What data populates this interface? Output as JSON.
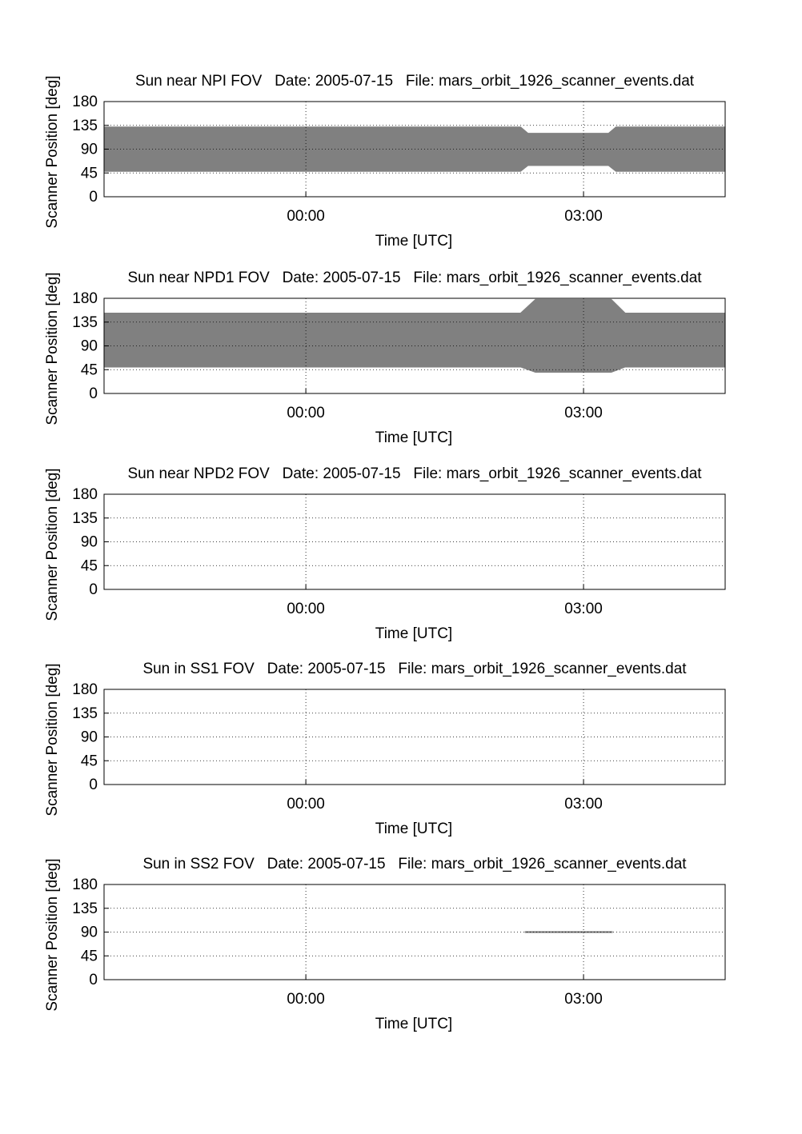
{
  "chart_data": [
    {
      "type": "band",
      "title": "Sun near NPI FOV   Date: 2005-07-15   File: mars_orbit_1926_scanner_events.dat",
      "xlabel": "Time [UTC]",
      "ylabel": "Scanner Position [deg]",
      "color": "#808080",
      "grid": true,
      "x": [
        -2.18,
        2.32,
        2.4,
        3.27,
        3.35,
        4.53
      ],
      "upper": [
        132,
        132,
        120,
        120,
        132,
        132
      ],
      "lower": [
        48,
        48,
        59,
        59,
        48,
        48
      ],
      "xlim": [
        -2.18,
        4.53
      ],
      "xticks": [
        {
          "value": 0,
          "label": "00:00"
        },
        {
          "value": 3,
          "label": "03:00"
        }
      ],
      "ylim": [
        0,
        180
      ],
      "yticks": [
        0,
        45,
        90,
        135,
        180
      ]
    },
    {
      "type": "band",
      "title": "Sun near NPD1 FOV   Date: 2005-07-15   File: mars_orbit_1926_scanner_events.dat",
      "xlabel": "Time [UTC]",
      "ylabel": "Scanner Position [deg]",
      "color": "#808080",
      "grid": true,
      "x": [
        -2.18,
        2.32,
        2.48,
        3.3,
        3.45,
        4.53
      ],
      "upper": [
        152,
        152,
        178,
        178,
        152,
        152
      ],
      "lower": [
        50,
        50,
        40,
        40,
        50,
        50
      ],
      "xlim": [
        -2.18,
        4.53
      ],
      "xticks": [
        {
          "value": 0,
          "label": "00:00"
        },
        {
          "value": 3,
          "label": "03:00"
        }
      ],
      "ylim": [
        0,
        180
      ],
      "yticks": [
        0,
        45,
        90,
        135,
        180
      ]
    },
    {
      "type": "band",
      "title": "Sun near NPD2 FOV   Date: 2005-07-15   File: mars_orbit_1926_scanner_events.dat",
      "xlabel": "Time [UTC]",
      "ylabel": "Scanner Position [deg]",
      "color": "#808080",
      "grid": true,
      "x": [],
      "upper": [],
      "lower": [],
      "xlim": [
        -2.18,
        4.53
      ],
      "xticks": [
        {
          "value": 0,
          "label": "00:00"
        },
        {
          "value": 3,
          "label": "03:00"
        }
      ],
      "ylim": [
        0,
        180
      ],
      "yticks": [
        0,
        45,
        90,
        135,
        180
      ]
    },
    {
      "type": "band",
      "title": "Sun in SS1 FOV   Date: 2005-07-15   File: mars_orbit_1926_scanner_events.dat",
      "xlabel": "Time [UTC]",
      "ylabel": "Scanner Position [deg]",
      "color": "#808080",
      "grid": true,
      "x": [],
      "upper": [],
      "lower": [],
      "xlim": [
        -2.18,
        4.53
      ],
      "xticks": [
        {
          "value": 0,
          "label": "00:00"
        },
        {
          "value": 3,
          "label": "03:00"
        }
      ],
      "ylim": [
        0,
        180
      ],
      "yticks": [
        0,
        45,
        90,
        135,
        180
      ]
    },
    {
      "type": "band",
      "title": "Sun in SS2 FOV   Date: 2005-07-15   File: mars_orbit_1926_scanner_events.dat",
      "xlabel": "Time [UTC]",
      "ylabel": "Scanner Position [deg]",
      "color": "#808080",
      "grid": true,
      "x": [
        2.37,
        3.31
      ],
      "upper": [
        91,
        91
      ],
      "lower": [
        89,
        89
      ],
      "xlim": [
        -2.18,
        4.53
      ],
      "xticks": [
        {
          "value": 0,
          "label": "00:00"
        },
        {
          "value": 3,
          "label": "03:00"
        }
      ],
      "ylim": [
        0,
        180
      ],
      "yticks": [
        0,
        45,
        90,
        135,
        180
      ]
    }
  ]
}
